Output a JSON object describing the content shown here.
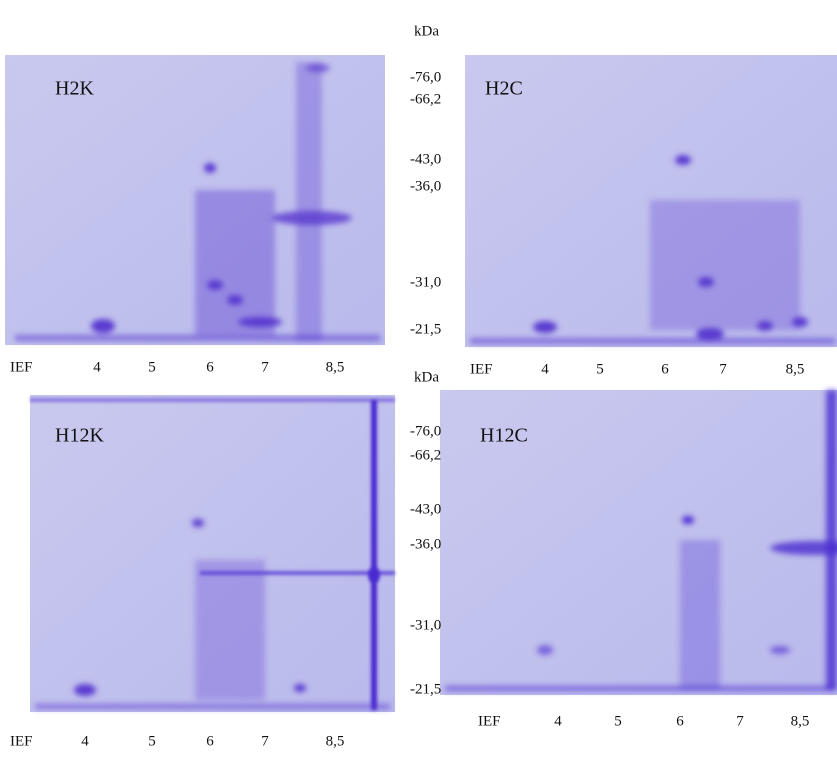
{
  "panels": [
    {
      "label": "H2K"
    },
    {
      "label": "H2C"
    },
    {
      "label": "H12K"
    },
    {
      "label": "H12C"
    }
  ],
  "kda_scales": [
    {
      "unit": "kDa",
      "markers": [
        "-76,0",
        "-66,2",
        "-43,0",
        "-36,0",
        "-31,0",
        "-21,5"
      ]
    },
    {
      "unit": "kDa",
      "markers": [
        "-76,0",
        "-66,2",
        "-43,0",
        "-36,0",
        "-31,0",
        "-21,5"
      ]
    }
  ],
  "ief_axes": [
    {
      "label": "IEF",
      "ticks": [
        "4",
        "5",
        "6",
        "7",
        "8,5"
      ]
    },
    {
      "label": "IEF",
      "ticks": [
        "4",
        "5",
        "6",
        "7",
        "8,5"
      ]
    },
    {
      "label": "IEF",
      "ticks": [
        "4",
        "5",
        "6",
        "7",
        "8,5"
      ]
    },
    {
      "label": "IEF",
      "ticks": [
        "4",
        "5",
        "6",
        "7",
        "8,5"
      ]
    }
  ]
}
